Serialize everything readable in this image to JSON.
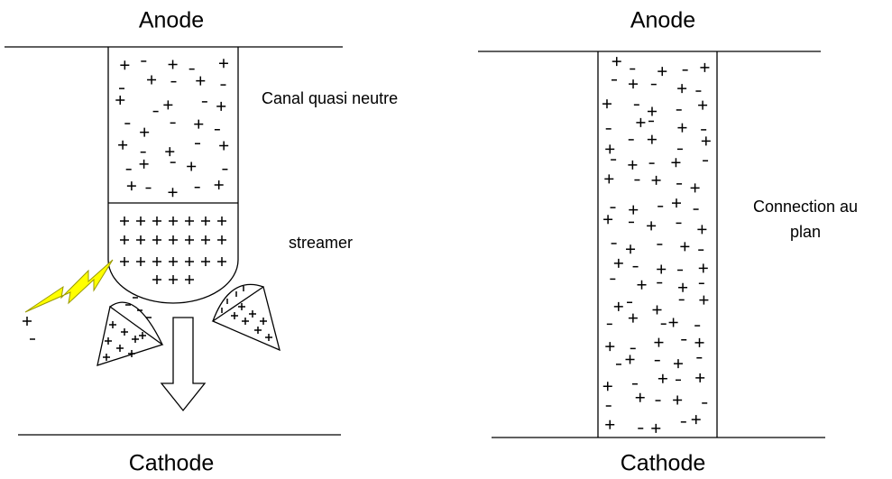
{
  "left": {
    "top_label": "Anode",
    "channel_label": "Canal quasi neutre",
    "streamer_label": "streamer",
    "bottom_label": "Cathode"
  },
  "right": {
    "top_label": "Anode",
    "side_label": [
      "Connection au",
      "plan"
    ],
    "bottom_label": "Cathode"
  }
}
